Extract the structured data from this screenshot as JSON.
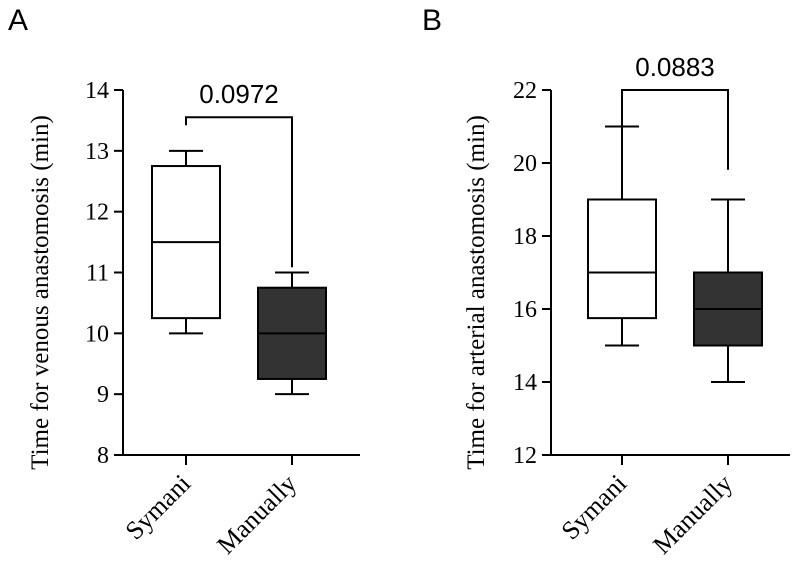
{
  "chart_data": [
    {
      "type": "box",
      "panel_label": "A",
      "title": "",
      "xlabel": "",
      "ylabel": "Time for venous anastomosis (min)",
      "ylim": [
        8,
        14
      ],
      "yticks": [
        "8",
        "9",
        "10",
        "11",
        "12",
        "13",
        "14"
      ],
      "categories": [
        "Symani",
        "Manually"
      ],
      "boxes": [
        {
          "name": "Symani",
          "min": 10,
          "q1": 10.25,
          "median": 11.5,
          "q3": 12.75,
          "max": 13,
          "fill": "#ffffff"
        },
        {
          "name": "Manually",
          "min": 9,
          "q1": 9.25,
          "median": 10,
          "q3": 10.75,
          "max": 11,
          "fill": "#333333"
        }
      ],
      "annotation": {
        "text": "0.0972",
        "bracket_left_y": 13.75,
        "bracket_right_y": 11.35,
        "bracket_top_y": 13.75
      }
    },
    {
      "type": "box",
      "panel_label": "B",
      "title": "",
      "xlabel": "",
      "ylabel": "Time for arterial anastomosis (min)",
      "ylim": [
        12,
        22
      ],
      "yticks": [
        "12",
        "14",
        "16",
        "18",
        "20",
        "22"
      ],
      "categories": [
        "Symani",
        "Manually"
      ],
      "boxes": [
        {
          "name": "Symani",
          "min": 15,
          "q1": 15.75,
          "median": 17,
          "q3": 19,
          "max": 21,
          "fill": "#ffffff"
        },
        {
          "name": "Manually",
          "min": 14,
          "q1": 15,
          "median": 16,
          "q3": 17,
          "max": 19,
          "fill": "#333333"
        }
      ],
      "annotation": {
        "text": "0.0883",
        "bracket_left_y": 21.4,
        "bracket_right_y": 20.2,
        "bracket_top_y": 22
      }
    }
  ]
}
